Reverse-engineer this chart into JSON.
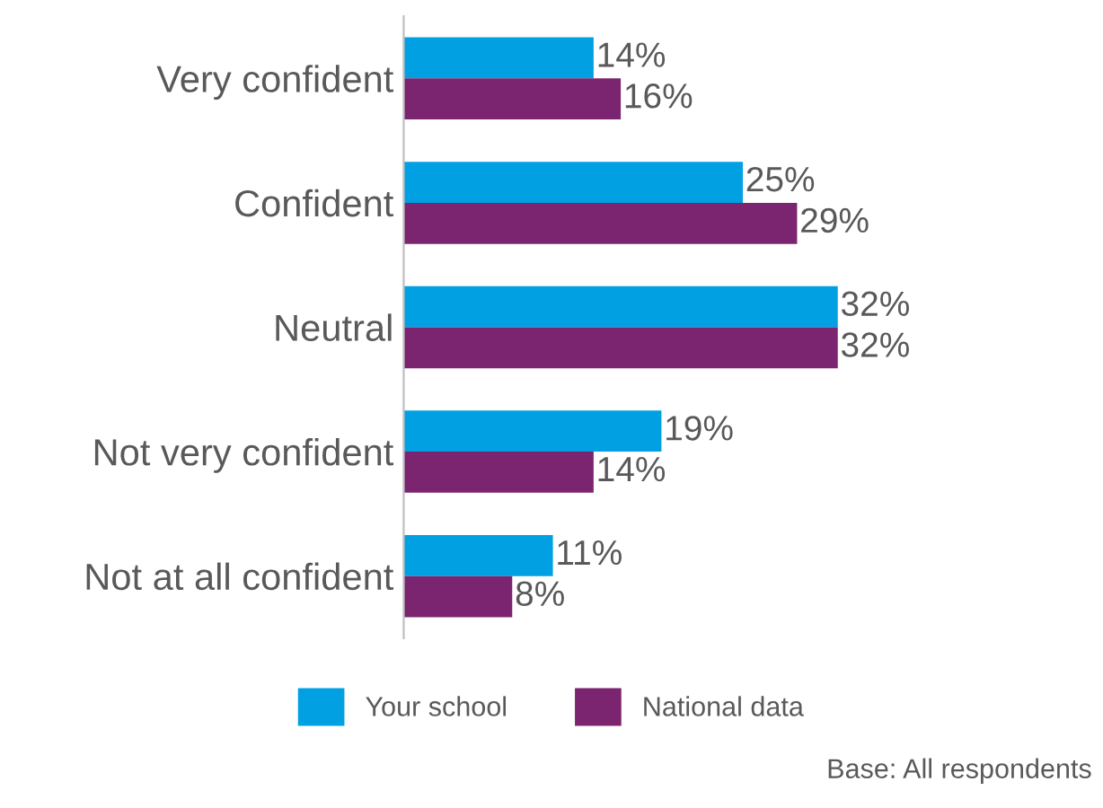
{
  "chart_data": {
    "type": "bar",
    "orientation": "horizontal",
    "categories": [
      "Very confident",
      "Confident",
      "Neutral",
      "Not very confident",
      "Not at all confident"
    ],
    "series": [
      {
        "name": "Your school",
        "color": "#00a0e3",
        "values": [
          14,
          25,
          32,
          19,
          11
        ],
        "value_labels": [
          "14%",
          "25%",
          "32%",
          "19%",
          "11%"
        ]
      },
      {
        "name": "National data",
        "color": "#7b2470",
        "values": [
          16,
          29,
          32,
          14,
          8
        ],
        "value_labels": [
          "16%",
          "29%",
          "32%",
          "14%",
          "8%"
        ]
      }
    ],
    "legend": "bottom",
    "grid": false,
    "tick_labels": "y",
    "annotations": [
      "Base: All respondents"
    ]
  }
}
